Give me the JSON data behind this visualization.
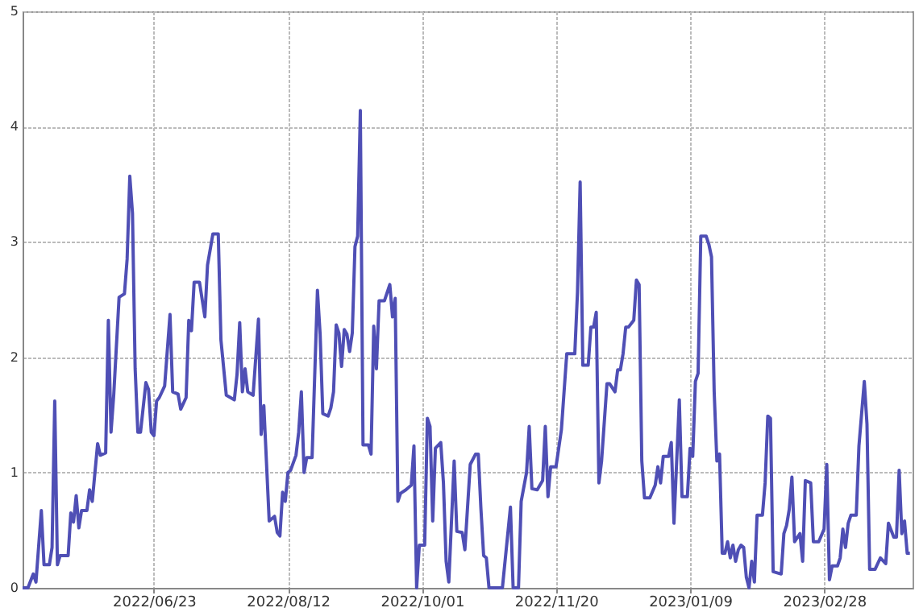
{
  "chart_data": {
    "type": "line",
    "x": [
      "2022-05-05",
      "2022-05-07",
      "2022-05-09",
      "2022-05-10",
      "2022-05-12",
      "2022-05-13",
      "2022-05-15",
      "2022-05-16",
      "2022-05-17",
      "2022-05-18",
      "2022-05-19",
      "2022-05-22",
      "2022-05-23",
      "2022-05-24",
      "2022-05-25",
      "2022-05-26",
      "2022-05-27",
      "2022-05-29",
      "2022-05-30",
      "2022-05-31",
      "2022-06-02",
      "2022-06-03",
      "2022-06-05",
      "2022-06-06",
      "2022-06-07",
      "2022-06-08",
      "2022-06-10",
      "2022-06-12",
      "2022-06-13",
      "2022-06-14",
      "2022-06-15",
      "2022-06-16",
      "2022-06-17",
      "2022-06-18",
      "2022-06-20",
      "2022-06-21",
      "2022-06-22",
      "2022-06-23",
      "2022-06-24",
      "2022-06-25",
      "2022-06-27",
      "2022-06-29",
      "2022-06-30",
      "2022-07-02",
      "2022-07-03",
      "2022-07-05",
      "2022-07-06",
      "2022-07-07",
      "2022-07-08",
      "2022-07-10",
      "2022-07-12",
      "2022-07-13",
      "2022-07-15",
      "2022-07-17",
      "2022-07-18",
      "2022-07-20",
      "2022-07-23",
      "2022-07-24",
      "2022-07-25",
      "2022-07-26",
      "2022-07-27",
      "2022-07-28",
      "2022-07-30",
      "2022-08-01",
      "2022-08-02",
      "2022-08-03",
      "2022-08-05",
      "2022-08-07",
      "2022-08-08",
      "2022-08-09",
      "2022-08-10",
      "2022-08-11",
      "2022-08-12",
      "2022-08-13",
      "2022-08-15",
      "2022-08-16",
      "2022-08-17",
      "2022-08-18",
      "2022-08-19",
      "2022-08-21",
      "2022-08-23",
      "2022-08-24",
      "2022-08-25",
      "2022-08-27",
      "2022-08-28",
      "2022-08-29",
      "2022-08-30",
      "2022-08-31",
      "2022-09-01",
      "2022-09-02",
      "2022-09-03",
      "2022-09-04",
      "2022-09-05",
      "2022-09-06",
      "2022-09-07",
      "2022-09-08",
      "2022-09-09",
      "2022-09-11",
      "2022-09-12",
      "2022-09-13",
      "2022-09-14",
      "2022-09-15",
      "2022-09-17",
      "2022-09-19",
      "2022-09-20",
      "2022-09-21",
      "2022-09-22",
      "2022-09-23",
      "2022-09-25",
      "2022-09-27",
      "2022-09-28",
      "2022-09-29",
      "2022-09-30",
      "2022-10-02",
      "2022-10-03",
      "2022-10-04",
      "2022-10-05",
      "2022-10-06",
      "2022-10-08",
      "2022-10-09",
      "2022-10-10",
      "2022-10-11",
      "2022-10-13",
      "2022-10-14",
      "2022-10-16",
      "2022-10-17",
      "2022-10-19",
      "2022-10-21",
      "2022-10-22",
      "2022-10-23",
      "2022-10-24",
      "2022-10-25",
      "2022-10-26",
      "2022-10-31",
      "2022-11-03",
      "2022-11-04",
      "2022-11-06",
      "2022-11-07",
      "2022-11-09",
      "2022-11-10",
      "2022-11-11",
      "2022-11-13",
      "2022-11-15",
      "2022-11-16",
      "2022-11-17",
      "2022-11-18",
      "2022-11-20",
      "2022-11-22",
      "2022-11-24",
      "2022-11-27",
      "2022-11-28",
      "2022-11-29",
      "2022-11-30",
      "2022-12-02",
      "2022-12-03",
      "2022-12-04",
      "2022-12-05",
      "2022-12-06",
      "2022-12-07",
      "2022-12-09",
      "2022-12-10",
      "2022-12-12",
      "2022-12-13",
      "2022-12-14",
      "2022-12-15",
      "2022-12-16",
      "2022-12-17",
      "2022-12-19",
      "2022-12-20",
      "2022-12-21",
      "2022-12-22",
      "2022-12-23",
      "2022-12-25",
      "2022-12-27",
      "2022-12-28",
      "2022-12-29",
      "2022-12-30",
      "2023-01-01",
      "2023-01-02",
      "2023-01-03",
      "2023-01-05",
      "2023-01-06",
      "2023-01-08",
      "2023-01-09",
      "2023-01-10",
      "2023-01-11",
      "2023-01-12",
      "2023-01-13",
      "2023-01-15",
      "2023-01-16",
      "2023-01-17",
      "2023-01-18",
      "2023-01-19",
      "2023-01-20",
      "2023-01-21",
      "2023-01-22",
      "2023-01-23",
      "2023-01-24",
      "2023-01-25",
      "2023-01-26",
      "2023-01-27",
      "2023-01-28",
      "2023-01-29",
      "2023-01-30",
      "2023-01-31",
      "2023-02-01",
      "2023-02-02",
      "2023-02-03",
      "2023-02-05",
      "2023-02-06",
      "2023-02-07",
      "2023-02-08",
      "2023-02-09",
      "2023-02-12",
      "2023-02-13",
      "2023-02-14",
      "2023-02-15",
      "2023-02-16",
      "2023-02-17",
      "2023-02-19",
      "2023-02-20",
      "2023-02-21",
      "2023-02-23",
      "2023-02-24",
      "2023-02-26",
      "2023-02-28",
      "2023-03-01",
      "2023-03-02",
      "2023-03-03",
      "2023-03-05",
      "2023-03-06",
      "2023-03-07",
      "2023-03-08",
      "2023-03-09",
      "2023-03-10",
      "2023-03-12",
      "2023-03-13",
      "2023-03-15",
      "2023-03-16",
      "2023-03-17",
      "2023-03-19",
      "2023-03-21",
      "2023-03-23",
      "2023-03-24",
      "2023-03-26",
      "2023-03-27",
      "2023-03-28",
      "2023-03-29",
      "2023-03-30",
      "2023-03-31",
      "2023-04-01"
    ],
    "series": [
      {
        "color": "#4f4fb5",
        "values": [
          0,
          0,
          0.12,
          0.05,
          0.67,
          0.2,
          0.2,
          0.35,
          1.62,
          0.2,
          0.28,
          0.28,
          0.65,
          0.57,
          0.8,
          0.52,
          0.67,
          0.67,
          0.85,
          0.75,
          1.25,
          1.15,
          1.17,
          2.32,
          1.35,
          1.67,
          2.52,
          2.55,
          2.85,
          3.57,
          3.25,
          1.9,
          1.35,
          1.35,
          1.78,
          1.72,
          1.35,
          1.32,
          1.62,
          1.65,
          1.75,
          2.37,
          1.7,
          1.68,
          1.55,
          1.65,
          2.32,
          2.23,
          2.65,
          2.65,
          2.35,
          2.8,
          3.07,
          3.07,
          2.15,
          1.67,
          1.63,
          1.85,
          2.3,
          1.7,
          1.9,
          1.7,
          1.67,
          2.33,
          1.33,
          1.58,
          0.58,
          0.62,
          0.48,
          0.45,
          0.83,
          0.75,
          1.0,
          1.02,
          1.15,
          1.35,
          1.7,
          1.0,
          1.13,
          1.13,
          2.58,
          2.2,
          1.51,
          1.49,
          1.56,
          1.7,
          2.28,
          2.21,
          1.92,
          2.24,
          2.2,
          2.05,
          2.21,
          2.96,
          3.05,
          4.14,
          1.24,
          1.24,
          1.16,
          2.27,
          1.9,
          2.49,
          2.49,
          2.63,
          2.35,
          2.51,
          0.75,
          0.82,
          0.85,
          0.89,
          1.23,
          0,
          0.37,
          0.37,
          1.47,
          1.4,
          0.58,
          1.21,
          1.26,
          0.91,
          0.23,
          0.05,
          1.1,
          0.49,
          0.48,
          0.33,
          1.07,
          1.16,
          1.16,
          0.68,
          0.28,
          0.26,
          0,
          0,
          0.7,
          0,
          0,
          0.75,
          1.0,
          1.4,
          0.86,
          0.85,
          0.93,
          1.4,
          0.79,
          1.05,
          1.05,
          1.37,
          2.03,
          2.03,
          2.56,
          3.52,
          1.93,
          1.93,
          2.26,
          2.26,
          2.39,
          0.91,
          1.1,
          1.77,
          1.77,
          1.7,
          1.89,
          1.89,
          2.03,
          2.26,
          2.26,
          2.32,
          2.67,
          2.63,
          1.1,
          0.78,
          0.78,
          0.89,
          1.05,
          0.91,
          1.14,
          1.14,
          1.26,
          0.56,
          1.63,
          0.79,
          0.79,
          1.21,
          1.14,
          1.79,
          1.86,
          3.05,
          3.05,
          2.98,
          2.87,
          1.7,
          1.1,
          1.16,
          0.3,
          0.3,
          0.4,
          0.26,
          0.37,
          0.23,
          0.33,
          0.37,
          0.35,
          0.09,
          0,
          0.23,
          0.05,
          0.63,
          0.63,
          0.91,
          1.49,
          1.47,
          0.14,
          0.12,
          0.47,
          0.54,
          0.68,
          0.96,
          0.4,
          0.47,
          0.23,
          0.93,
          0.91,
          0.4,
          0.4,
          0.51,
          1.07,
          0.07,
          0.19,
          0.19,
          0.26,
          0.51,
          0.35,
          0.56,
          0.63,
          0.63,
          1.23,
          1.79,
          1.42,
          0.16,
          0.16,
          0.26,
          0.21,
          0.56,
          0.44,
          0.44,
          1.02,
          0.47,
          0.58,
          0.3,
          0.3
        ]
      }
    ],
    "xlim": [
      "2022-05-05",
      "2023-04-02"
    ],
    "xticks": [
      {
        "value": "2022-06-23",
        "label": "2022/06/23"
      },
      {
        "value": "2022-08-12",
        "label": "2022/08/12"
      },
      {
        "value": "2022-10-01",
        "label": "2022/10/01"
      },
      {
        "value": "2022-11-20",
        "label": "2022/11/20"
      },
      {
        "value": "2023-01-09",
        "label": "2023/01/09"
      },
      {
        "value": "2023-02-28",
        "label": "2023/02/28"
      }
    ],
    "ylim": [
      0,
      5
    ],
    "yticks": [
      0,
      1,
      2,
      3,
      4,
      5
    ],
    "grid": true,
    "marker": "none",
    "line_style": "solid"
  }
}
